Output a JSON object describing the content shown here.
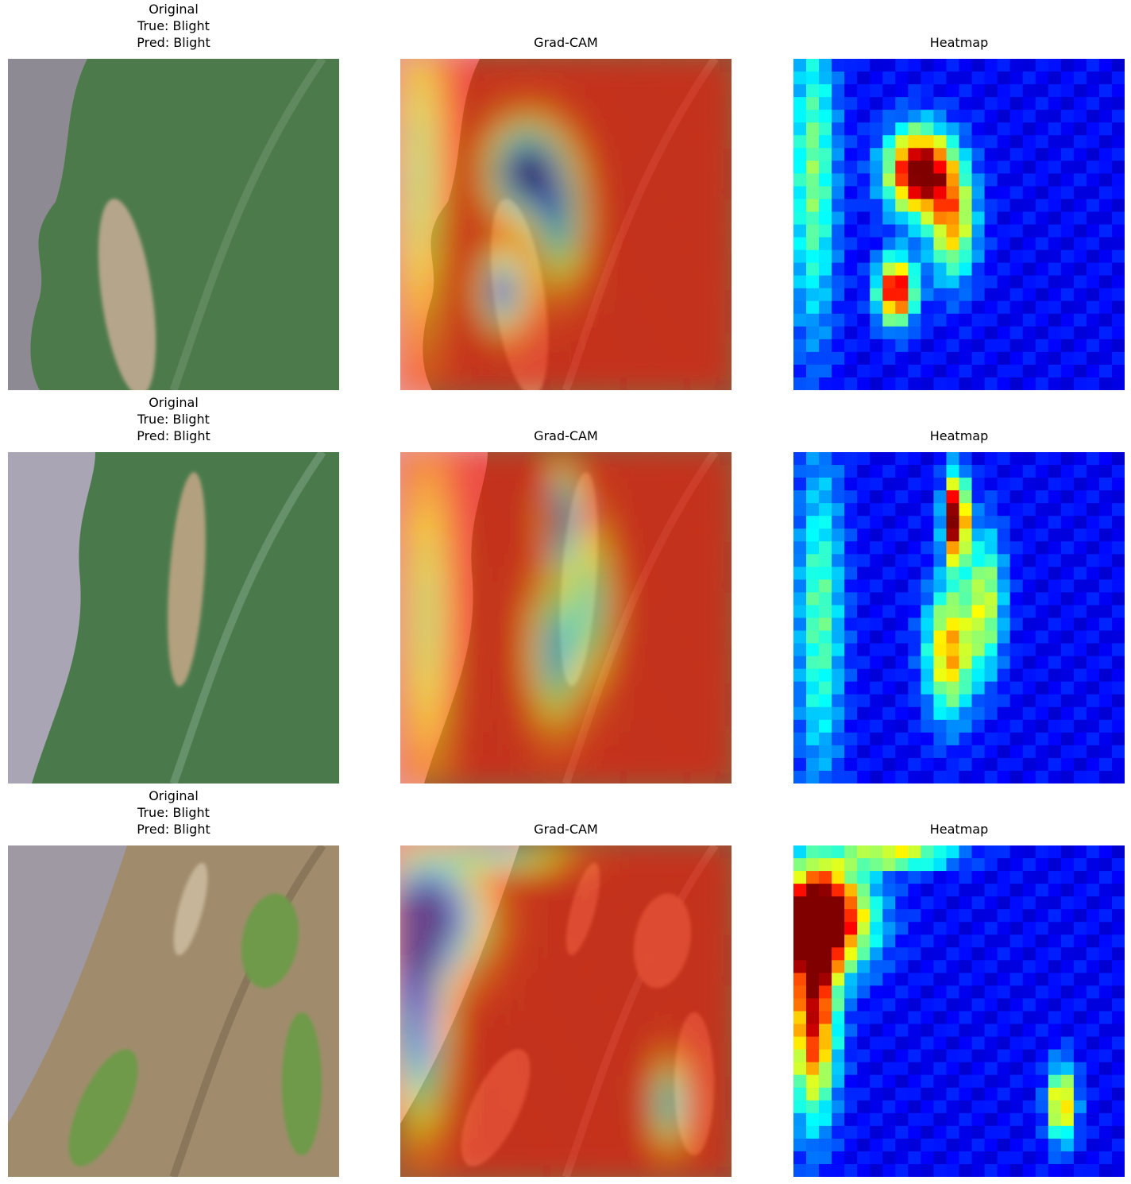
{
  "rows": [
    {
      "original": {
        "title": [
          "Original",
          "True: Blight",
          "Pred: Blight"
        ]
      },
      "gradcam": {
        "title": "Grad-CAM"
      },
      "heatmap": {
        "title": "Heatmap"
      }
    },
    {
      "original": {
        "title": [
          "Original",
          "True: Blight",
          "Pred: Blight"
        ]
      },
      "gradcam": {
        "title": "Grad-CAM"
      },
      "heatmap": {
        "title": "Heatmap"
      }
    },
    {
      "original": {
        "title": [
          "Original",
          "True: Blight",
          "Pred: Blight"
        ]
      },
      "gradcam": {
        "title": "Grad-CAM"
      },
      "heatmap": {
        "title": "Heatmap"
      }
    }
  ]
}
